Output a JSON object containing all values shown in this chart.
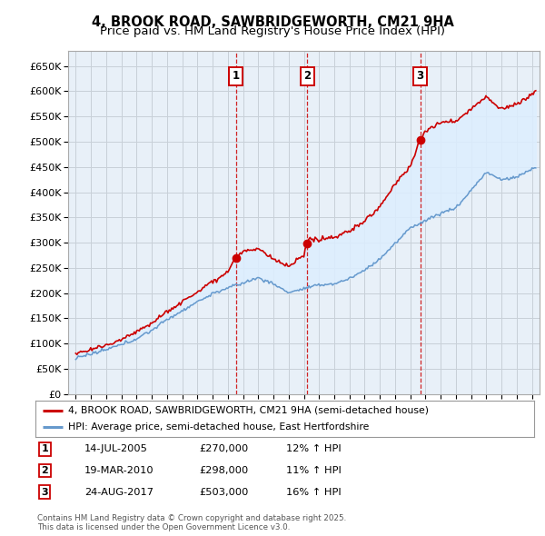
{
  "title": "4, BROOK ROAD, SAWBRIDGEWORTH, CM21 9HA",
  "subtitle": "Price paid vs. HM Land Registry's House Price Index (HPI)",
  "ylim": [
    0,
    680000
  ],
  "yticks": [
    0,
    50000,
    100000,
    150000,
    200000,
    250000,
    300000,
    350000,
    400000,
    450000,
    500000,
    550000,
    600000,
    650000
  ],
  "xlim_start": 1994.5,
  "xlim_end": 2025.5,
  "legend_line1": "4, BROOK ROAD, SAWBRIDGEWORTH, CM21 9HA (semi-detached house)",
  "legend_line2": "HPI: Average price, semi-detached house, East Hertfordshire",
  "transaction_labels": [
    "1",
    "2",
    "3"
  ],
  "transaction_dates": [
    2005.54,
    2010.22,
    2017.65
  ],
  "transaction_prices": [
    270000,
    298000,
    503000
  ],
  "transaction_label_texts": [
    "14-JUL-2005",
    "19-MAR-2010",
    "24-AUG-2017"
  ],
  "transaction_price_texts": [
    "£270,000",
    "£298,000",
    "£503,000"
  ],
  "transaction_hpi_texts": [
    "12% ↑ HPI",
    "11% ↑ HPI",
    "16% ↑ HPI"
  ],
  "footnote1": "Contains HM Land Registry data © Crown copyright and database right 2025.",
  "footnote2": "This data is licensed under the Open Government Licence v3.0.",
  "price_line_color": "#cc0000",
  "hpi_line_color": "#6699cc",
  "hpi_fill_color": "#ddeeff",
  "chart_bg_color": "#e8f0f8",
  "transaction_line_color": "#cc0000",
  "background_color": "#ffffff",
  "grid_color": "#c8d0d8",
  "title_fontsize": 10.5,
  "subtitle_fontsize": 9.5
}
